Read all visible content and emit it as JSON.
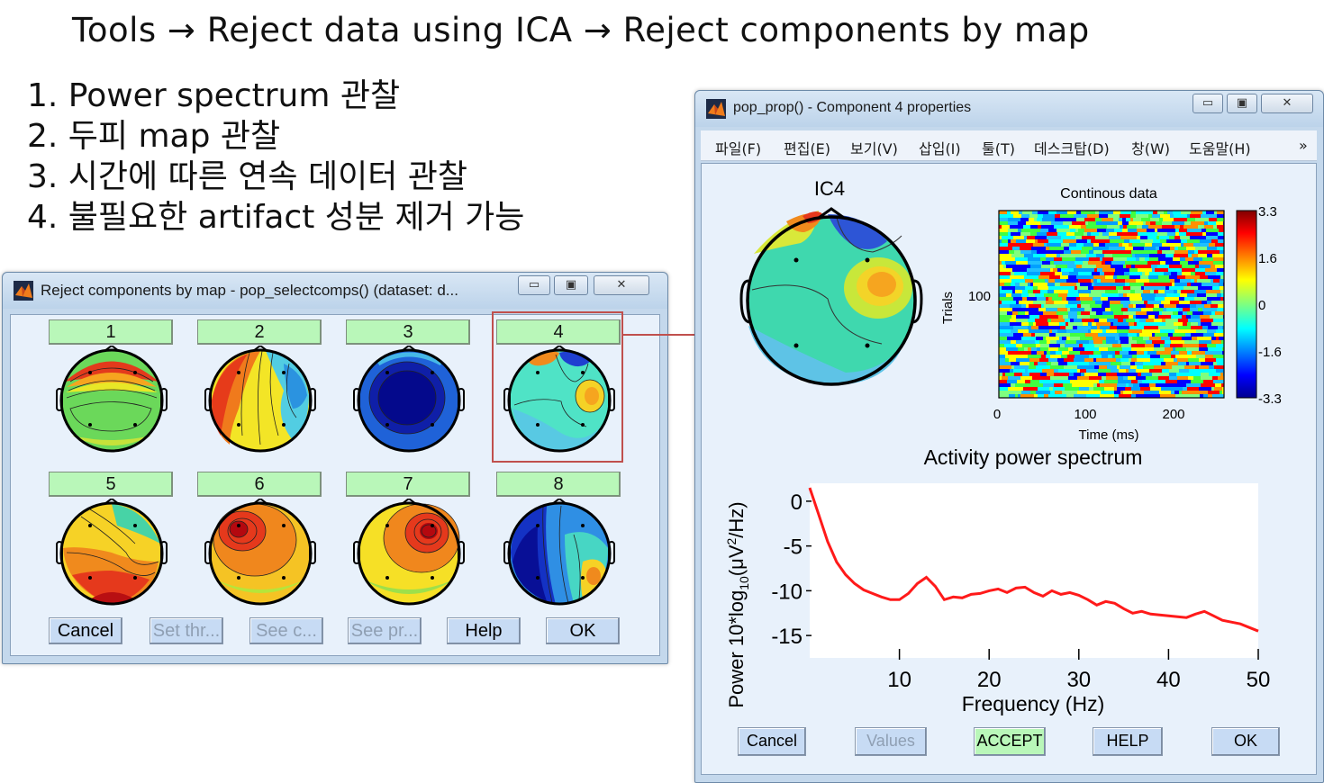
{
  "menu_path": {
    "tools": "Tools",
    "arrow": "→",
    "reject_ica": "Reject data using ICA",
    "reject_map": "Reject components by map"
  },
  "steps": [
    "1. Power spectrum 관찰",
    "2. 두피 map 관찰",
    "3. 시간에 따른 연속 데이터 관찰",
    "4. 불필요한 artifact 성분 제거 가능"
  ],
  "reject_window": {
    "title": "Reject components by map - pop_selectcomps() (dataset: d...",
    "controls": {
      "minimize": "▭",
      "maximize": "▣",
      "close": "✕"
    },
    "components": [
      "1",
      "2",
      "3",
      "4",
      "5",
      "6",
      "7",
      "8"
    ],
    "buttons": [
      "Cancel",
      "Set thr...",
      "See c...",
      "See pr...",
      "Help",
      "OK"
    ]
  },
  "prop_window": {
    "title": "pop_prop() - Component 4 properties",
    "controls": {
      "minimize": "▭",
      "maximize": "▣",
      "close": "✕"
    },
    "menus": [
      "파일(F)",
      "편집(E)",
      "보기(V)",
      "삽입(I)",
      "툴(T)",
      "데스크탑(D)",
      "창(W)",
      "도움말(H)"
    ],
    "menu_overflow": "»",
    "topo_title": "IC4",
    "erpimage": {
      "title": "Continous data",
      "ylabel": "Trials",
      "ytick": "100",
      "xticks": [
        "0",
        "100",
        "200"
      ],
      "xlabel": "Time (ms)",
      "colorbar_ticks": [
        "3.3",
        "1.6",
        "0",
        "-1.6",
        "-3.3"
      ]
    },
    "spectrum_title": "Activity power spectrum",
    "buttons": [
      "Cancel",
      "Values",
      "ACCEPT",
      "HELP",
      "OK"
    ]
  },
  "chart_data": {
    "type": "line",
    "title": "Activity power spectrum",
    "xlabel": "Frequency (Hz)",
    "ylabel": "Power 10*log10(μV²/Hz)",
    "xlim": [
      0,
      50
    ],
    "ylim": [
      -17.5,
      2
    ],
    "xticks": [
      10,
      20,
      30,
      40,
      50
    ],
    "yticks": [
      0,
      -5,
      -10,
      -15
    ],
    "series": [
      {
        "color": "#ff1a1a",
        "x": [
          0,
          1,
          2,
          3,
          4,
          5,
          6,
          7,
          8,
          9,
          10,
          11,
          12,
          13,
          14,
          15,
          16,
          17,
          18,
          19,
          20,
          21,
          22,
          23,
          24,
          25,
          26,
          27,
          28,
          29,
          30,
          31,
          32,
          33,
          34,
          35,
          36,
          37,
          38,
          39,
          40,
          41,
          42,
          43,
          44,
          45,
          46,
          47,
          48,
          49,
          50
        ],
        "y": [
          1.5,
          -1.5,
          -4.5,
          -6.8,
          -8.2,
          -9.2,
          -9.9,
          -10.3,
          -10.7,
          -11.0,
          -11.0,
          -10.3,
          -9.2,
          -8.5,
          -9.5,
          -11.0,
          -10.7,
          -10.8,
          -10.4,
          -10.3,
          -10.0,
          -9.8,
          -10.2,
          -9.7,
          -9.6,
          -10.2,
          -10.6,
          -10.0,
          -10.4,
          -10.2,
          -10.5,
          -11.0,
          -11.6,
          -11.2,
          -11.4,
          -12.0,
          -12.5,
          -12.3,
          -12.6,
          -12.7,
          -12.8,
          -12.9,
          -13.0,
          -12.6,
          -12.3,
          -12.8,
          -13.3,
          -13.5,
          -13.7,
          -14.1,
          -14.5
        ]
      }
    ]
  }
}
